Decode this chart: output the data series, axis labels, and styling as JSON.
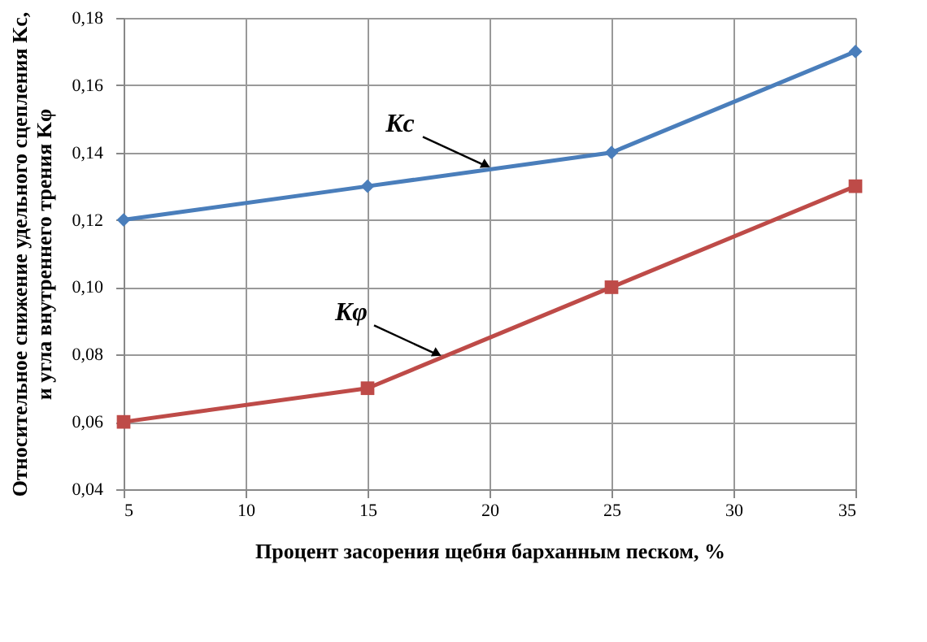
{
  "chart_data": {
    "type": "line",
    "xlabel": "Процент засорения щебня барханным песком, %",
    "ylabel": "Относительное снижение удельного сцепления Kc,\nи угла внутреннего трения Kφ",
    "x": [
      5,
      15,
      25,
      35
    ],
    "series": [
      {
        "color": "#4a7ebb",
        "marker": "diamond",
        "values": [
          0.12,
          0.13,
          0.14,
          0.17
        ]
      },
      {
        "color": "#be4b48",
        "marker": "square",
        "values": [
          0.06,
          0.07,
          0.1,
          0.13
        ]
      }
    ],
    "xlim": [
      5,
      35
    ],
    "xticks": [
      5,
      10,
      15,
      20,
      25,
      30,
      35
    ],
    "ylim": [
      0.04,
      0.18
    ],
    "yticks": [
      {
        "value": 0.04,
        "label": "0,04"
      },
      {
        "value": 0.06,
        "label": "0,06"
      },
      {
        "value": 0.08,
        "label": "0,08"
      },
      {
        "value": 0.1,
        "label": "0,10"
      },
      {
        "value": 0.12,
        "label": "0,12"
      },
      {
        "value": 0.14,
        "label": "0,14"
      },
      {
        "value": 0.16,
        "label": "0,16"
      },
      {
        "value": 0.18,
        "label": "0,18"
      }
    ],
    "annotations": [
      {
        "text": "Kc",
        "x": 20,
        "y": 0.135
      },
      {
        "text": "Kφ",
        "x": 18,
        "y": 0.079
      }
    ],
    "grid": true,
    "line_style": "solid"
  }
}
